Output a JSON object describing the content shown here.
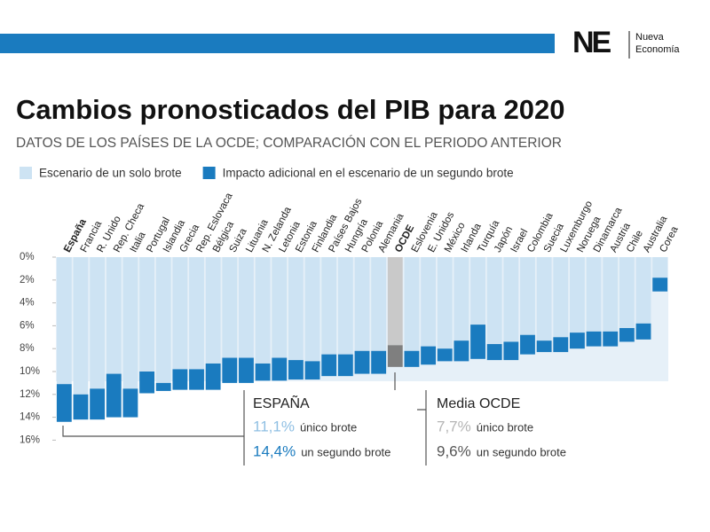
{
  "header": {
    "logo": "NE",
    "brand_line1": "Nueva",
    "brand_line2": "Economía"
  },
  "chart_data": {
    "type": "bar",
    "stacked": true,
    "y_inverted": true,
    "title": "Cambios pronosticados del PIB para 2020",
    "subtitle": "DATOS DE LOS PAÍSES DE LA OCDE; COMPARACIÓN CON EL PERIODO ANTERIOR",
    "categories": [
      "España",
      "Francia",
      "R. Unido",
      "Rep. Checa",
      "Italia",
      "Portugal",
      "Islandia",
      "Grecia",
      "Rep. Eslovaca",
      "Bélgica",
      "Suiza",
      "Lituania",
      "N. Zelanda",
      "Letonia",
      "Estonia",
      "Finlandia",
      "Países Bajos",
      "Hungría",
      "Polonia",
      "Alemania",
      "OCDE",
      "Eslovenia",
      "E. Unidos",
      "México",
      "Irlanda",
      "Turquía",
      "Japón",
      "Israel",
      "Colombia",
      "Suecia",
      "Luxemburgo",
      "Noruega",
      "Dinamarca",
      "Austria",
      "Chile",
      "Australia",
      "Corea"
    ],
    "series": [
      {
        "name": "Escenario de un solo brote",
        "color": "#cde3f3",
        "highlight_color": "#c9c9c9",
        "values": [
          11.1,
          12.0,
          11.5,
          10.2,
          11.5,
          10.0,
          11.0,
          9.8,
          9.8,
          9.3,
          8.8,
          8.8,
          9.3,
          8.8,
          9.0,
          9.1,
          8.5,
          8.5,
          8.2,
          8.2,
          7.7,
          8.2,
          7.8,
          8.0,
          7.3,
          5.9,
          7.6,
          7.4,
          6.8,
          7.3,
          7.0,
          6.6,
          6.5,
          6.5,
          6.2,
          5.8,
          1.8
        ]
      },
      {
        "name": "Impacto adicional en el escenario de un segundo brote",
        "color": "#1a7bbf",
        "highlight_color": "#7f7f7f",
        "values": [
          3.3,
          2.2,
          2.7,
          3.8,
          2.5,
          1.9,
          0.7,
          1.8,
          1.8,
          2.3,
          2.2,
          2.2,
          1.5,
          2.0,
          1.7,
          1.6,
          1.9,
          1.9,
          2.0,
          2.0,
          1.9,
          1.4,
          1.6,
          1.1,
          1.8,
          3.0,
          1.4,
          1.6,
          1.7,
          1.0,
          1.3,
          1.4,
          1.3,
          1.3,
          1.2,
          1.4,
          1.2
        ]
      }
    ],
    "highlight_indices": [
      0,
      20
    ],
    "ylim": [
      0,
      16
    ],
    "yticks": [
      {
        "value": 0,
        "label": "0%"
      },
      {
        "value": 2,
        "label": "2%"
      },
      {
        "value": 4,
        "label": "4%"
      },
      {
        "value": 6,
        "label": "6%"
      },
      {
        "value": 8,
        "label": "8%"
      },
      {
        "value": 10,
        "label": "10%"
      },
      {
        "value": 12,
        "label": "12%"
      },
      {
        "value": 14,
        "label": "14%"
      },
      {
        "value": 16,
        "label": "16%"
      }
    ],
    "annotations": [
      {
        "title": "ESPAÑA",
        "first_value": "11,1%",
        "first_text": "único brote",
        "second_value": "14,4%",
        "second_text": "un segundo brote"
      },
      {
        "title": "Media OCDE",
        "first_value": "7,7%",
        "first_text": "único brote",
        "second_value": "9,6%",
        "second_text": "un segundo brote"
      }
    ]
  }
}
